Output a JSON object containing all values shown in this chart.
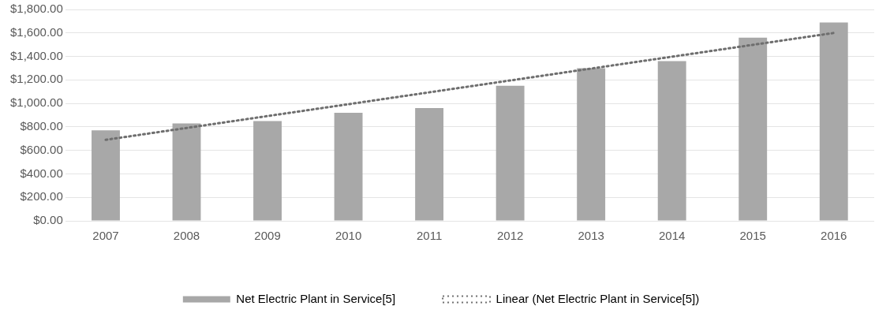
{
  "chart_data": {
    "type": "bar",
    "categories": [
      "2007",
      "2008",
      "2009",
      "2010",
      "2011",
      "2012",
      "2013",
      "2014",
      "2015",
      "2016"
    ],
    "series": [
      {
        "name": "Net Electric Plant in Service[5]",
        "color": "#a8a8a8",
        "values": [
          770,
          830,
          850,
          920,
          960,
          1150,
          1300,
          1360,
          1560,
          1690
        ]
      },
      {
        "name": "Linear (Net Electric Plant in Service[5])",
        "type": "line",
        "color": "#6e6e6e",
        "line_style": "dotted",
        "marker": "none",
        "values": [
          690,
          null,
          null,
          null,
          null,
          null,
          null,
          null,
          null,
          1600
        ]
      }
    ],
    "ylim": [
      0,
      1800
    ],
    "yticks": [
      {
        "value": 0,
        "label": "$0.00"
      },
      {
        "value": 200,
        "label": "$200.00"
      },
      {
        "value": 400,
        "label": "$400.00"
      },
      {
        "value": 600,
        "label": "$600.00"
      },
      {
        "value": 800,
        "label": "$800.00"
      },
      {
        "value": 1000,
        "label": "$1,000.00"
      },
      {
        "value": 1200,
        "label": "$1,200.00"
      },
      {
        "value": 1400,
        "label": "$1,400.00"
      },
      {
        "value": 1600,
        "label": "$1,600.00"
      },
      {
        "value": 1800,
        "label": "$1,800.00"
      }
    ],
    "grid": "y",
    "legend": "bottom"
  }
}
